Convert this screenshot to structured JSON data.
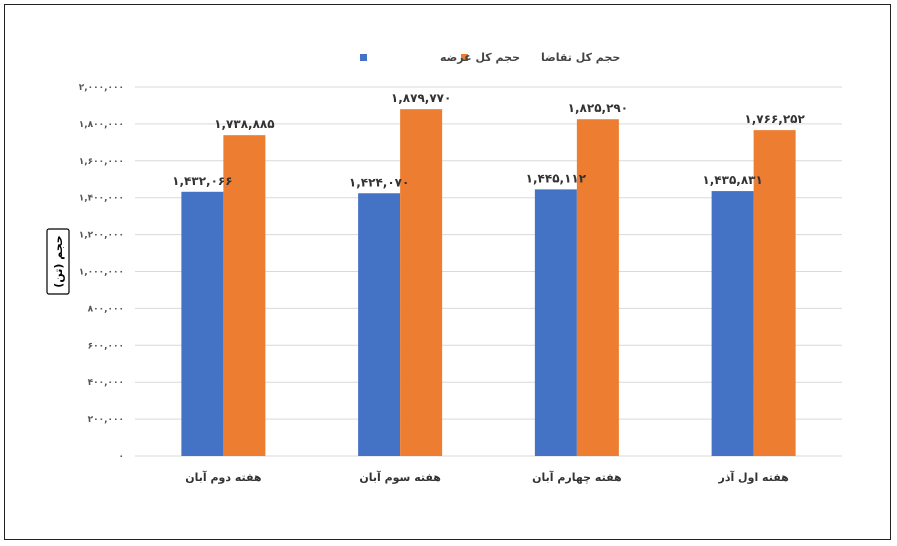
{
  "chart_data": {
    "type": "bar",
    "title": "",
    "ylabel": "حجم (تن)",
    "xlabel": "",
    "categories": [
      "هفته دوم آبان",
      "هفته سوم آبان",
      "هفته چهارم آبان",
      "هفته اول آذر"
    ],
    "series": [
      {
        "name": "حجم کل عرضه",
        "color": "#4472C4",
        "values": [
          1432066,
          1424070,
          1445112,
          1435831
        ],
        "labels": [
          "۱,۴۳۲,۰۶۶",
          "۱,۴۲۴,۰۷۰",
          "۱,۴۴۵,۱۱۲",
          "۱,۴۳۵,۸۳۱"
        ]
      },
      {
        "name": "حجم کل تقاضا",
        "color": "#ED7D31",
        "values": [
          1738885,
          1879770,
          1825290,
          1766252
        ],
        "labels": [
          "۱,۷۳۸,۸۸۵",
          "۱,۸۷۹,۷۷۰",
          "۱,۸۲۵,۲۹۰",
          "۱,۷۶۶,۲۵۲"
        ]
      }
    ],
    "ylim": [
      0,
      2000000
    ],
    "yticks": [
      0,
      200000,
      400000,
      600000,
      800000,
      1000000,
      1200000,
      1400000,
      1600000,
      1800000,
      2000000
    ],
    "ytick_labels": [
      "۰",
      "۲۰۰,۰۰۰",
      "۴۰۰,۰۰۰",
      "۶۰۰,۰۰۰",
      "۸۰۰,۰۰۰",
      "۱,۰۰۰,۰۰۰",
      "۱,۲۰۰,۰۰۰",
      "۱,۴۰۰,۰۰۰",
      "۱,۶۰۰,۰۰۰",
      "۱,۸۰۰,۰۰۰",
      "۲,۰۰۰,۰۰۰"
    ],
    "grid": true,
    "legend_position": "top"
  }
}
